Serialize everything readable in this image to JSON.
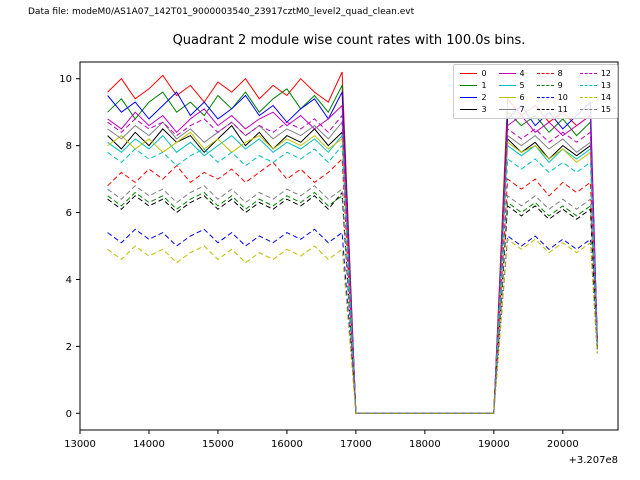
{
  "header": {
    "data_file_label": "Data file: modeM0/AS1A07_142T01_9000003540_23917cztM0_level2_quad_clean.evt"
  },
  "chart_data": {
    "type": "line",
    "title": "Quadrant 2 module wise count rates with 100.0s bins.",
    "xlabel": "",
    "ylabel": "",
    "x_offset_label": "+3.207e8",
    "xlim": [
      13000,
      20800
    ],
    "ylim": [
      -0.5,
      10.5
    ],
    "x_ticks": [
      13000,
      14000,
      15000,
      16000,
      17000,
      18000,
      19000,
      20000
    ],
    "y_ticks": [
      0,
      2,
      4,
      6,
      8,
      10
    ],
    "grid": false,
    "legend": {
      "position": "upper right",
      "columns": 4
    },
    "x": [
      13400,
      13600,
      13800,
      14000,
      14200,
      14400,
      14600,
      14800,
      15000,
      15200,
      15400,
      15600,
      15800,
      16000,
      16200,
      16400,
      16600,
      16800,
      17000,
      17200,
      17400,
      17600,
      17800,
      18000,
      18200,
      18400,
      18600,
      18800,
      19000,
      19200,
      19400,
      19600,
      19800,
      20000,
      20200,
      20400,
      20500
    ],
    "series": [
      {
        "name": "0",
        "color": "#ff0000",
        "dash": "solid",
        "values": [
          9.6,
          10.0,
          9.4,
          9.7,
          10.1,
          9.5,
          9.8,
          9.3,
          9.9,
          9.6,
          10.0,
          9.4,
          9.8,
          9.5,
          10.0,
          9.6,
          9.3,
          10.2,
          0,
          0,
          0,
          0,
          0,
          0,
          0,
          0,
          0,
          0,
          0,
          9.4,
          8.9,
          9.2,
          8.7,
          9.0,
          8.6,
          8.9,
          2.2
        ]
      },
      {
        "name": "1",
        "color": "#008000",
        "dash": "solid",
        "values": [
          9.0,
          9.4,
          8.8,
          9.3,
          9.6,
          9.0,
          9.3,
          8.9,
          9.5,
          9.1,
          9.6,
          9.0,
          9.4,
          9.7,
          9.1,
          9.5,
          9.0,
          9.8,
          0,
          0,
          0,
          0,
          0,
          0,
          0,
          0,
          0,
          0,
          0,
          9.0,
          8.6,
          8.9,
          8.4,
          8.8,
          8.3,
          8.7,
          2.1
        ]
      },
      {
        "name": "2",
        "color": "#0000ff",
        "dash": "solid",
        "values": [
          9.5,
          9.0,
          9.3,
          8.8,
          9.2,
          9.6,
          8.9,
          9.3,
          8.8,
          9.1,
          9.5,
          8.9,
          9.2,
          8.7,
          9.1,
          9.4,
          8.8,
          9.6,
          0,
          0,
          0,
          0,
          0,
          0,
          0,
          0,
          0,
          0,
          0,
          8.8,
          9.2,
          8.6,
          9.0,
          8.5,
          8.9,
          9.3,
          2.2
        ]
      },
      {
        "name": "3",
        "color": "#000000",
        "dash": "solid",
        "values": [
          8.3,
          7.9,
          8.4,
          8.0,
          8.5,
          8.1,
          8.3,
          7.8,
          8.2,
          8.6,
          8.0,
          8.4,
          7.9,
          8.3,
          8.1,
          8.5,
          8.0,
          8.4,
          0,
          0,
          0,
          0,
          0,
          0,
          0,
          0,
          0,
          0,
          0,
          8.2,
          7.8,
          8.1,
          7.6,
          8.0,
          7.7,
          8.0,
          2.1
        ]
      },
      {
        "name": "4",
        "color": "#bf00bf",
        "dash": "solid",
        "values": [
          8.8,
          8.5,
          9.0,
          8.6,
          8.9,
          8.4,
          8.8,
          9.1,
          8.6,
          8.9,
          8.5,
          8.8,
          9.0,
          8.6,
          8.9,
          8.5,
          8.8,
          9.2,
          0,
          0,
          0,
          0,
          0,
          0,
          0,
          0,
          0,
          0,
          0,
          8.6,
          8.9,
          8.4,
          8.7,
          8.3,
          8.6,
          8.9,
          2.2
        ]
      },
      {
        "name": "5",
        "color": "#00bfbf",
        "dash": "solid",
        "values": [
          8.1,
          7.8,
          8.2,
          7.9,
          8.3,
          7.8,
          8.1,
          7.7,
          8.0,
          8.3,
          7.9,
          8.2,
          7.8,
          8.1,
          7.9,
          8.2,
          7.8,
          8.3,
          0,
          0,
          0,
          0,
          0,
          0,
          0,
          0,
          0,
          0,
          0,
          8.0,
          7.7,
          8.0,
          7.5,
          7.9,
          7.6,
          7.9,
          2.1
        ]
      },
      {
        "name": "6",
        "color": "#bfbf00",
        "dash": "solid",
        "values": [
          8.0,
          8.3,
          7.9,
          8.2,
          7.8,
          8.1,
          8.4,
          7.9,
          8.2,
          7.8,
          8.1,
          8.3,
          7.9,
          8.2,
          8.0,
          8.3,
          7.9,
          8.2,
          0,
          0,
          0,
          0,
          0,
          0,
          0,
          0,
          0,
          0,
          0,
          8.1,
          7.8,
          8.0,
          7.6,
          7.9,
          7.5,
          7.8,
          2.0
        ]
      },
      {
        "name": "7",
        "color": "#808080",
        "dash": "solid",
        "values": [
          8.5,
          8.2,
          8.6,
          8.3,
          8.7,
          8.2,
          8.5,
          8.1,
          8.4,
          8.7,
          8.3,
          8.6,
          8.2,
          8.5,
          8.3,
          8.6,
          8.2,
          8.7,
          0,
          0,
          0,
          0,
          0,
          0,
          0,
          0,
          0,
          0,
          0,
          8.3,
          8.0,
          8.3,
          7.9,
          8.2,
          7.8,
          8.1,
          2.1
        ]
      },
      {
        "name": "8",
        "color": "#ff0000",
        "dash": "dashed",
        "values": [
          6.8,
          7.2,
          6.9,
          7.3,
          7.0,
          7.4,
          6.9,
          7.2,
          7.0,
          7.3,
          6.9,
          7.2,
          7.5,
          7.0,
          7.3,
          6.9,
          7.2,
          7.6,
          0,
          0,
          0,
          0,
          0,
          0,
          0,
          0,
          0,
          0,
          0,
          7.0,
          6.7,
          7.0,
          6.5,
          6.9,
          6.6,
          6.9,
          2.0
        ]
      },
      {
        "name": "9",
        "color": "#008000",
        "dash": "dashed",
        "values": [
          6.5,
          6.2,
          6.6,
          6.3,
          6.5,
          6.1,
          6.4,
          6.6,
          6.2,
          6.5,
          6.1,
          6.4,
          6.2,
          6.5,
          6.3,
          6.6,
          6.2,
          6.5,
          0,
          0,
          0,
          0,
          0,
          0,
          0,
          0,
          0,
          0,
          0,
          6.3,
          6.0,
          6.3,
          5.9,
          6.2,
          5.9,
          6.2,
          1.9
        ]
      },
      {
        "name": "10",
        "color": "#0000ff",
        "dash": "dashed",
        "values": [
          5.4,
          5.1,
          5.5,
          5.2,
          5.4,
          5.0,
          5.3,
          5.5,
          5.1,
          5.4,
          5.0,
          5.3,
          5.1,
          5.4,
          5.2,
          5.5,
          5.1,
          5.4,
          0,
          0,
          0,
          0,
          0,
          0,
          0,
          0,
          0,
          0,
          0,
          5.3,
          5.0,
          5.3,
          4.9,
          5.2,
          4.9,
          5.2,
          1.8
        ]
      },
      {
        "name": "11",
        "color": "#000000",
        "dash": "dashed",
        "values": [
          6.4,
          6.1,
          6.5,
          6.2,
          6.4,
          6.0,
          6.3,
          6.5,
          6.1,
          6.4,
          6.0,
          6.3,
          6.1,
          6.4,
          6.2,
          6.5,
          6.1,
          6.6,
          0,
          0,
          0,
          0,
          0,
          0,
          0,
          0,
          0,
          0,
          0,
          6.2,
          5.9,
          6.2,
          5.8,
          6.1,
          5.8,
          6.1,
          1.9
        ]
      },
      {
        "name": "12",
        "color": "#bf00bf",
        "dash": "dashed",
        "values": [
          8.7,
          8.4,
          8.8,
          8.5,
          8.7,
          8.3,
          8.6,
          8.8,
          8.4,
          8.7,
          8.3,
          8.6,
          8.4,
          8.7,
          8.5,
          8.8,
          8.4,
          8.9,
          0,
          0,
          0,
          0,
          0,
          0,
          0,
          0,
          0,
          0,
          0,
          8.5,
          8.2,
          8.5,
          8.1,
          8.4,
          8.1,
          8.4,
          2.1
        ]
      },
      {
        "name": "13",
        "color": "#00bfbf",
        "dash": "dashed",
        "values": [
          7.8,
          7.5,
          7.9,
          7.6,
          7.8,
          7.4,
          7.7,
          7.9,
          7.5,
          7.8,
          7.4,
          7.7,
          7.5,
          7.8,
          7.6,
          7.9,
          7.5,
          8.0,
          0,
          0,
          0,
          0,
          0,
          0,
          0,
          0,
          0,
          0,
          0,
          7.6,
          7.3,
          7.6,
          7.2,
          7.5,
          7.2,
          7.5,
          2.0
        ]
      },
      {
        "name": "14",
        "color": "#bfbf00",
        "dash": "dashed",
        "values": [
          4.9,
          4.6,
          5.0,
          4.7,
          4.9,
          4.5,
          4.8,
          5.0,
          4.6,
          4.9,
          4.5,
          4.8,
          4.6,
          4.9,
          4.7,
          5.0,
          4.6,
          4.9,
          0,
          0,
          0,
          0,
          0,
          0,
          0,
          0,
          0,
          0,
          0,
          5.2,
          4.9,
          5.2,
          4.8,
          5.1,
          4.8,
          5.1,
          1.8
        ]
      },
      {
        "name": "15",
        "color": "#808080",
        "dash": "dashed",
        "values": [
          6.7,
          6.4,
          6.8,
          6.5,
          6.7,
          6.3,
          6.6,
          6.8,
          6.4,
          6.7,
          6.3,
          6.6,
          6.4,
          6.7,
          6.5,
          6.8,
          6.4,
          6.7,
          0,
          0,
          0,
          0,
          0,
          0,
          0,
          0,
          0,
          0,
          0,
          6.5,
          6.2,
          6.5,
          6.1,
          6.4,
          6.1,
          6.4,
          1.9
        ]
      }
    ]
  }
}
